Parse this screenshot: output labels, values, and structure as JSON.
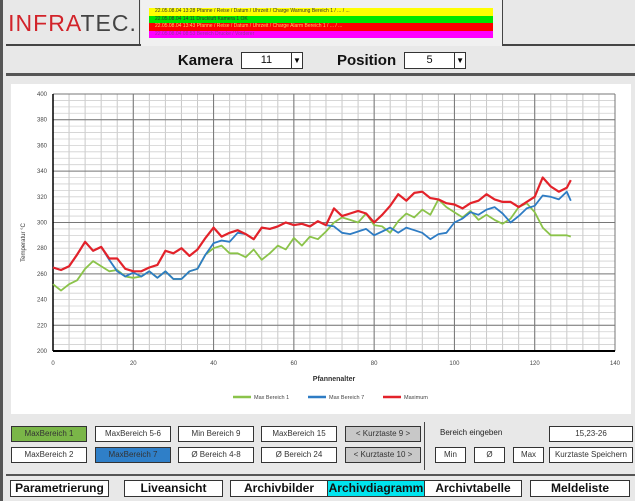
{
  "header": {
    "logo_prefix": "INFRA",
    "logo_suffix": "TEC.",
    "alarms": [
      {
        "text": "22.05.08.04 13:28   Pfanne / Reise / Datum / Uhrzeit / Charge Warnung Bereich 1 / ... / ...",
        "color": "#ffff00",
        "text_color": "#333333"
      },
      {
        "text": "22.05.08.04 14:11   Druckluft Kamera 1 OK",
        "color": "#00e600",
        "text_color": "#333333"
      },
      {
        "text": "22.05.08.04 13:43   Pfanne / Reise / Datum / Uhrzeit / Charge Alarm Bereich 1 / ... / ...",
        "color": "#ff0000",
        "text_color": "#ffcc66"
      },
      {
        "text": "22.05.08.04 08:53   Bereich Drucke / Vorderer",
        "color": "#ff00ff",
        "text_color": "#993399"
      }
    ]
  },
  "selectors": {
    "camera_label": "Kamera",
    "camera_value": "11",
    "position_label": "Position",
    "position_value": "5"
  },
  "chart_data": {
    "type": "line",
    "title": "",
    "xlabel": "Pfannenalter",
    "ylabel": "Temperatur °C",
    "xlim": [
      0,
      140
    ],
    "ylim": [
      200,
      400
    ],
    "xticks": [
      0,
      20,
      40,
      60,
      80,
      100,
      120,
      140
    ],
    "yticks": [
      200,
      220,
      240,
      260,
      280,
      300,
      320,
      340,
      360,
      380,
      400
    ],
    "grid": true,
    "legend_position": "bottom",
    "x": [
      0,
      2,
      4,
      6,
      8,
      10,
      12,
      14,
      16,
      18,
      20,
      22,
      24,
      26,
      28,
      30,
      32,
      34,
      36,
      38,
      40,
      42,
      44,
      46,
      48,
      50,
      52,
      54,
      56,
      58,
      60,
      62,
      64,
      66,
      68,
      70,
      72,
      74,
      76,
      78,
      80,
      82,
      84,
      86,
      88,
      90,
      92,
      94,
      96,
      98,
      100,
      102,
      104,
      106,
      108,
      110,
      112,
      114,
      116,
      118,
      120,
      122,
      124,
      126,
      128,
      129
    ],
    "series": [
      {
        "name": "Max Bereich 1",
        "color": "#8bc34a",
        "values": [
          252,
          247,
          252,
          255,
          264,
          270,
          266,
          262,
          263,
          258,
          257,
          258,
          262,
          257,
          262,
          256,
          256,
          262,
          264,
          275,
          280,
          282,
          276,
          276,
          273,
          279,
          271,
          276,
          282,
          279,
          288,
          282,
          289,
          287,
          293,
          300,
          304,
          302,
          300,
          307,
          298,
          297,
          292,
          301,
          307,
          304,
          310,
          306,
          318,
          312,
          308,
          304,
          309,
          302,
          306,
          302,
          299,
          303,
          312,
          315,
          308,
          296,
          290,
          290,
          290,
          289
        ]
      },
      {
        "name": "Max Bereich 7",
        "color": "#2e7cc4",
        "values": [
          265,
          263,
          266,
          275,
          285,
          278,
          281,
          271,
          262,
          258,
          261,
          258,
          262,
          257,
          262,
          256,
          256,
          262,
          264,
          275,
          284,
          286,
          285,
          292,
          291,
          287,
          296,
          295,
          297,
          300,
          298,
          299,
          297,
          301,
          298,
          297,
          292,
          291,
          293,
          295,
          290,
          293,
          296,
          292,
          296,
          294,
          292,
          287,
          291,
          292,
          300,
          303,
          308,
          306,
          310,
          312,
          307,
          300,
          305,
          311,
          313,
          321,
          320,
          318,
          324,
          317
        ]
      },
      {
        "name": "Maximum",
        "color": "#e3222a",
        "values": [
          265,
          263,
          266,
          275,
          285,
          278,
          281,
          272,
          272,
          264,
          262,
          262,
          265,
          267,
          278,
          276,
          280,
          274,
          279,
          288,
          296,
          289,
          292,
          294,
          291,
          287,
          296,
          295,
          297,
          300,
          298,
          299,
          297,
          301,
          298,
          311,
          305,
          307,
          309,
          307,
          300,
          306,
          313,
          322,
          317,
          323,
          324,
          319,
          318,
          315,
          314,
          311,
          315,
          317,
          322,
          318,
          316,
          316,
          312,
          316,
          320,
          335,
          328,
          324,
          327,
          333
        ]
      }
    ]
  },
  "controls": {
    "range_buttons": [
      {
        "label": "MaxBereich 1",
        "state": "green"
      },
      {
        "label": "MaxBereich 5-6",
        "state": "normal"
      },
      {
        "label": "Min Bereich 9",
        "state": "normal"
      },
      {
        "label": "MaxBereich 15",
        "state": "normal"
      },
      {
        "label": "< Kurztaste 9 >",
        "state": "gray"
      },
      {
        "label": "MaxBereich 2",
        "state": "normal"
      },
      {
        "label": "MaxBereich 7",
        "state": "blue"
      },
      {
        "label": "Ø Bereich 4-8",
        "state": "normal"
      },
      {
        "label": "Ø Bereich 24",
        "state": "normal"
      },
      {
        "label": "< Kurztaste 10 >",
        "state": "gray"
      }
    ],
    "bereich_label": "Bereich eingeben",
    "bereich_value": "15,23-26",
    "min_label": "Min",
    "avg_label": "Ø",
    "max_label": "Max",
    "save_label": "Kurztaste Speichern"
  },
  "nav": {
    "tabs": [
      {
        "label": "Parametrierung",
        "active": false
      },
      {
        "label": "Liveansicht",
        "active": false
      },
      {
        "label": "Archivbilder",
        "active": false
      },
      {
        "label": "Archivdiagramm",
        "active": true
      },
      {
        "label": "Archivtabelle",
        "active": false
      },
      {
        "label": "Meldeliste",
        "active": false
      }
    ]
  }
}
